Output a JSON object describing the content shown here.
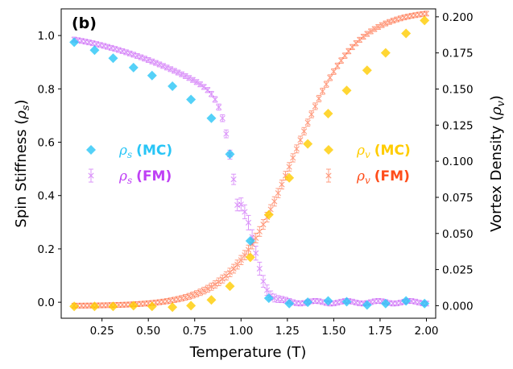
{
  "chart_data": {
    "type": "scatter",
    "panel_label": "(b)",
    "xlabel": "Temperature (T)",
    "ylabel_left": {
      "prefix": "Spin Stiffness (",
      "symbol": "ρ",
      "sub": "s",
      "suffix": ")"
    },
    "ylabel_right": {
      "prefix": "Vortex Density (",
      "symbol": "ρ",
      "sub": "v",
      "suffix": ")"
    },
    "xlim": [
      0.03,
      2.05
    ],
    "ylim_left": [
      -0.06,
      1.1
    ],
    "ylim_right": [
      -0.0087,
      0.2055
    ],
    "x_ticks": [
      0.25,
      0.5,
      0.75,
      1.0,
      1.25,
      1.5,
      1.75,
      2.0
    ],
    "x_tick_labels": [
      "0.25",
      "0.50",
      "0.75",
      "1.00",
      "1.25",
      "1.50",
      "1.75",
      "2.00"
    ],
    "y_left_ticks": [
      0.0,
      0.2,
      0.4,
      0.6,
      0.8,
      1.0
    ],
    "y_left_tick_labels": [
      "0.0",
      "0.2",
      "0.4",
      "0.6",
      "0.8",
      "1.0"
    ],
    "y_right_ticks": [
      0.0,
      0.025,
      0.05,
      0.075,
      0.1,
      0.125,
      0.15,
      0.175,
      0.2
    ],
    "y_right_tick_labels": [
      "0.000",
      "0.025",
      "0.050",
      "0.075",
      "0.100",
      "0.125",
      "0.150",
      "0.175",
      "0.200"
    ],
    "series": [
      {
        "name": "ρs (MC)",
        "symbol": "ρ",
        "sub": "s",
        "label": "(MC)",
        "axis": "left",
        "marker": "diamond",
        "color": "#29c5f6",
        "x": [
          0.1,
          0.21,
          0.31,
          0.42,
          0.52,
          0.63,
          0.73,
          0.84,
          0.94,
          1.05,
          1.15,
          1.26,
          1.36,
          1.47,
          1.57,
          1.68,
          1.78,
          1.89,
          1.99
        ],
        "y": [
          0.975,
          0.945,
          0.915,
          0.88,
          0.85,
          0.81,
          0.76,
          0.69,
          0.555,
          0.23,
          0.015,
          -0.005,
          0.0,
          0.005,
          0.002,
          -0.01,
          -0.005,
          0.005,
          -0.005
        ]
      },
      {
        "name": "ρs (FM)",
        "symbol": "ρ",
        "sub": "s",
        "label": "(FM)",
        "axis": "left",
        "marker": "x-errorbar",
        "color": "#bf40f5",
        "curve": "stiffness",
        "x_range": [
          0.1,
          2.0
        ],
        "n_points": 96
      },
      {
        "name": "ρv (MC)",
        "symbol": "ρ",
        "sub": "v",
        "label": "(MC)",
        "axis": "right",
        "marker": "diamond",
        "color": "#ffcc00",
        "x": [
          0.1,
          0.21,
          0.31,
          0.42,
          0.52,
          0.63,
          0.73,
          0.84,
          0.94,
          1.05,
          1.15,
          1.26,
          1.36,
          1.47,
          1.57,
          1.68,
          1.78,
          1.89,
          1.99
        ],
        "y": [
          -0.0005,
          -0.0005,
          -0.0005,
          0.0,
          -0.0005,
          -0.001,
          0.0,
          0.004,
          0.0135,
          0.0335,
          0.063,
          0.0885,
          0.112,
          0.133,
          0.149,
          0.163,
          0.175,
          0.1885,
          0.1975
        ]
      },
      {
        "name": "ρv (FM)",
        "symbol": "ρ",
        "sub": "v",
        "label": "(FM)",
        "axis": "right",
        "marker": "x-errorbar",
        "color": "#ff4d1a",
        "curve": "vortex",
        "x_range": [
          0.1,
          2.0
        ],
        "n_points": 96
      }
    ],
    "legend_left": {
      "position": "center-left",
      "entries": [
        0,
        1
      ]
    },
    "legend_right": {
      "position": "center-right",
      "entries": [
        2,
        3
      ]
    },
    "grid": false
  }
}
